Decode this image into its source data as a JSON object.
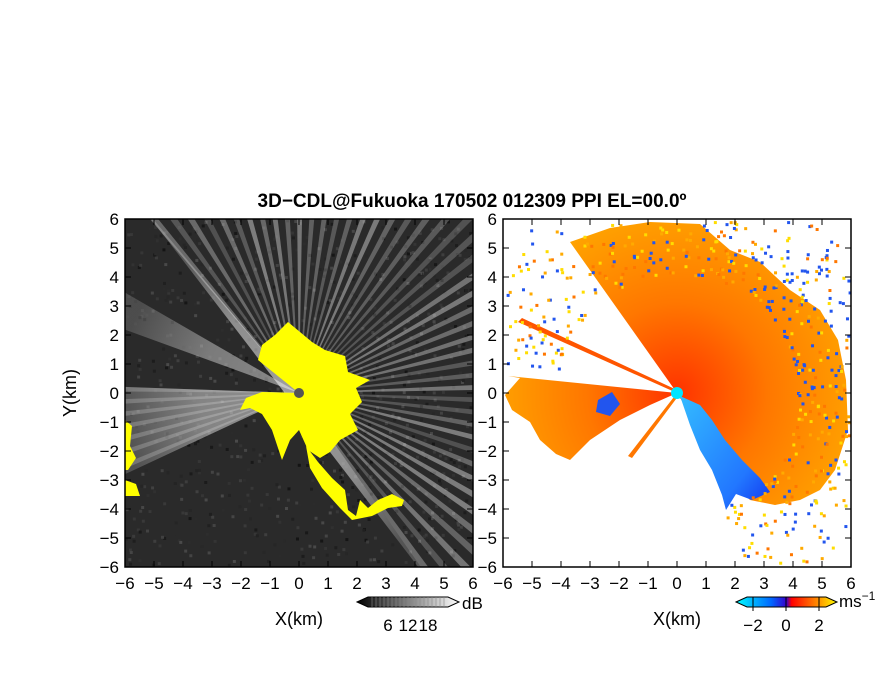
{
  "title": "3D−CDL@Fukuoka 170502 012309 PPI EL=00.0º",
  "colors": {
    "background": "#ffffff",
    "echo_yellow": "#ffff00",
    "dark_noise": "#222222",
    "radar_center": "#00e5ff"
  },
  "chart_data": [
    {
      "type": "heatmap",
      "panel": "left",
      "product": "intensity (SNR)",
      "xlabel": "X(km)",
      "ylabel": "Y(km)",
      "xlim": [
        -6,
        6
      ],
      "ylim": [
        -6,
        6
      ],
      "xticks": [
        -6,
        -5,
        -4,
        -3,
        -2,
        -1,
        0,
        1,
        2,
        3,
        4,
        5,
        6
      ],
      "yticks": [
        -6,
        -5,
        -4,
        -3,
        -2,
        -1,
        0,
        1,
        2,
        3,
        4,
        5,
        6
      ],
      "xtick_labels": [
        "−6",
        "−5",
        "−4",
        "−3",
        "−2",
        "−1",
        "0",
        "1",
        "2",
        "3",
        "4",
        "5",
        "6"
      ],
      "ytick_labels": [
        "−6",
        "−5",
        "−4",
        "−3",
        "−2",
        "−1",
        "0",
        "1",
        "2",
        "3",
        "4",
        "5",
        "6"
      ],
      "colorbar": {
        "unit": "dB",
        "ticks": [
          6,
          12,
          18
        ],
        "tick_labels": [
          "6",
          "12",
          "18"
        ],
        "colors": [
          "#000000",
          "#ffffff"
        ]
      },
      "grid": false,
      "radar_origin_km": [
        0,
        0
      ]
    },
    {
      "type": "heatmap",
      "panel": "right",
      "product": "radial velocity",
      "xlabel": "X(km)",
      "ylabel": "",
      "xlim": [
        -6,
        6
      ],
      "ylim": [
        -6,
        6
      ],
      "xticks": [
        -6,
        -5,
        -4,
        -3,
        -2,
        -1,
        0,
        1,
        2,
        3,
        4,
        5,
        6
      ],
      "xtick_labels": [
        "−6",
        "−5",
        "−4",
        "−3",
        "−2",
        "−1",
        "0",
        "1",
        "2",
        "3",
        "4",
        "5",
        "6"
      ],
      "colorbar": {
        "unit": "ms",
        "unit_exponent": "−1",
        "ticks": [
          -2,
          0,
          2
        ],
        "tick_labels": [
          "−2",
          "0",
          "2"
        ],
        "colors": [
          "#00ffff",
          "#0000ff",
          "#ff0000",
          "#ffff00"
        ]
      },
      "grid": false,
      "radar_origin_km": [
        0,
        0
      ]
    }
  ]
}
